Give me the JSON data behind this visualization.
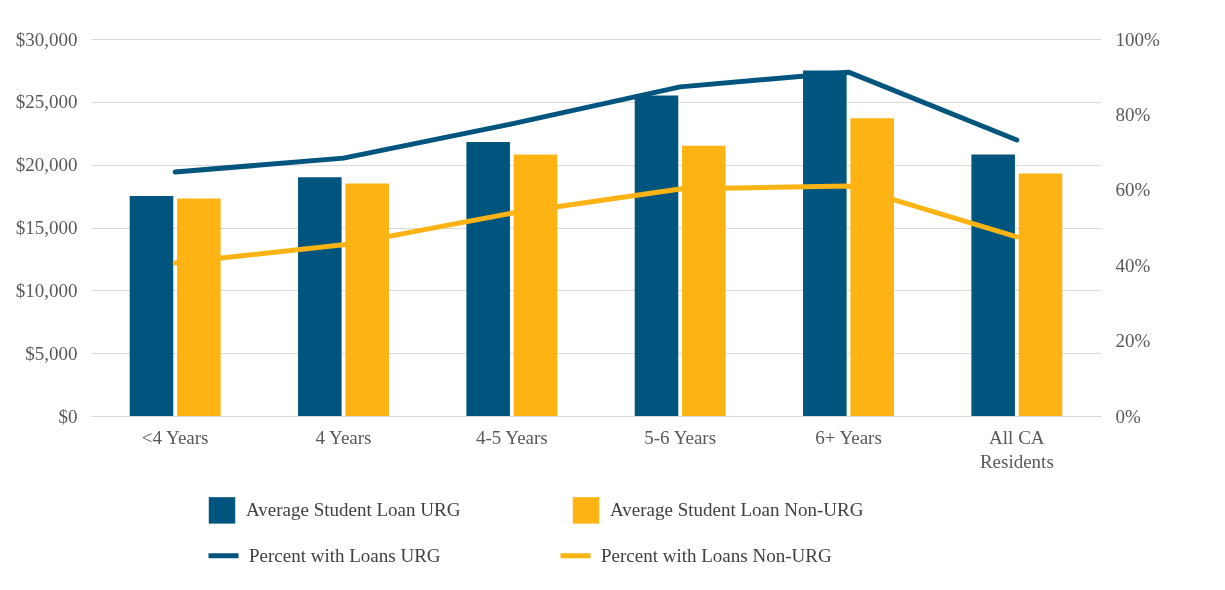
{
  "chart_data": {
    "type": "bar",
    "categories": [
      "<4 Years",
      "4 Years",
      "4-5 Years",
      "5-6 Years",
      "6+ Years",
      "All CA Residents"
    ],
    "series": [
      {
        "name": "Average Student Loan URG",
        "color": "#00557f",
        "values": [
          17500,
          19000,
          21800,
          25500,
          27500,
          20800
        ]
      },
      {
        "name": "Average Student Loan Non-URG",
        "color": "#fdb313",
        "values": [
          17300,
          18500,
          20800,
          21500,
          23700,
          19300
        ]
      },
      {
        "name": "Percent with Loans URG",
        "type": "line",
        "axis": "y2",
        "color": "#00557f",
        "values": [
          64.7,
          68.4,
          77.5,
          87.3,
          91.2,
          73.2
        ]
      },
      {
        "name": "Percent with Loans Non-URG",
        "type": "line",
        "axis": "y2",
        "color": "#fdb313",
        "values": [
          40.6,
          45.4,
          53.8,
          60.2,
          61,
          47.5
        ]
      }
    ],
    "ylim": [
      0,
      30000
    ],
    "yticks": [
      {
        "value": 0,
        "label": "$0"
      },
      {
        "value": 5000,
        "label": "$5,000"
      },
      {
        "value": 10000,
        "label": "$10,000"
      },
      {
        "value": 15000,
        "label": "$15,000"
      },
      {
        "value": 20000,
        "label": "$20,000"
      },
      {
        "value": 25000,
        "label": "$25,000"
      },
      {
        "value": 30000,
        "label": "$30,000"
      }
    ],
    "y2lim": [
      0,
      100
    ],
    "y2ticks": [
      {
        "value": 0,
        "label": "0%"
      },
      {
        "value": 20,
        "label": "20%"
      },
      {
        "value": 40,
        "label": "40%"
      },
      {
        "value": 60,
        "label": "60%"
      },
      {
        "value": 80,
        "label": "80%"
      },
      {
        "value": 100,
        "label": "100%"
      }
    ],
    "grid": "y",
    "legend": "bottom"
  }
}
